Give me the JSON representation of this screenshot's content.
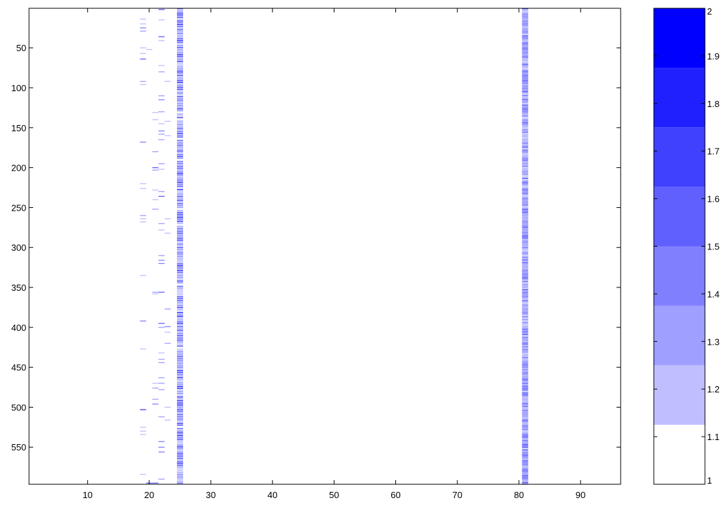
{
  "chart_data": [
    {
      "type": "heatmap",
      "title": "",
      "xlabel": "",
      "ylabel": "",
      "xlim": [
        0.5,
        96.5
      ],
      "ylim": [
        0.5,
        596.5
      ],
      "y_reversed": true,
      "xticks": [
        10,
        20,
        30,
        40,
        50,
        60,
        70,
        80,
        90
      ],
      "yticks": [
        50,
        100,
        150,
        200,
        250,
        300,
        350,
        400,
        450,
        500,
        550
      ],
      "background_value": 1,
      "colormap": [
        "#ffffff",
        "#bfbfff",
        "#9f9fff",
        "#8080ff",
        "#6060ff",
        "#4040ff",
        "#2020ff",
        "#0000ff"
      ],
      "columns": [
        {
          "x": 19,
          "cells": [
            {
              "y": 14,
              "value": 1.2
            },
            {
              "y": 20,
              "value": 1.2
            },
            {
              "y": 25,
              "value": 1.4
            },
            {
              "y": 29,
              "value": 1.3
            },
            {
              "y": 50,
              "value": 1.2
            },
            {
              "y": 57,
              "value": 1.2
            },
            {
              "y": 64,
              "value": 1.6
            },
            {
              "y": 92,
              "value": 1.3
            },
            {
              "y": 96,
              "value": 1.2
            },
            {
              "y": 168,
              "value": 1.4
            },
            {
              "y": 220,
              "value": 1.2
            },
            {
              "y": 226,
              "value": 1.2
            },
            {
              "y": 260,
              "value": 1.3
            },
            {
              "y": 264,
              "value": 1.2
            },
            {
              "y": 268,
              "value": 1.2
            },
            {
              "y": 335,
              "value": 1.2
            },
            {
              "y": 392,
              "value": 1.4
            },
            {
              "y": 427,
              "value": 1.2
            },
            {
              "y": 503,
              "value": 1.7
            },
            {
              "y": 525,
              "value": 1.2
            },
            {
              "y": 530,
              "value": 1.2
            },
            {
              "y": 534,
              "value": 1.2
            },
            {
              "y": 584,
              "value": 1.2
            }
          ]
        },
        {
          "x": 20,
          "cells": [
            {
              "y": 52,
              "value": 1.2
            },
            {
              "y": 595,
              "value": 1.5
            }
          ]
        },
        {
          "x": 21,
          "cells": [
            {
              "y": 131,
              "value": 1.2
            },
            {
              "y": 140,
              "value": 1.2
            },
            {
              "y": 180,
              "value": 1.3
            },
            {
              "y": 200,
              "value": 1.5
            },
            {
              "y": 203,
              "value": 1.3
            },
            {
              "y": 228,
              "value": 1.2
            },
            {
              "y": 240,
              "value": 1.2
            },
            {
              "y": 252,
              "value": 1.3
            },
            {
              "y": 356,
              "value": 1.3
            },
            {
              "y": 358,
              "value": 1.2
            },
            {
              "y": 470,
              "value": 1.2
            },
            {
              "y": 476,
              "value": 1.3
            },
            {
              "y": 490,
              "value": 1.3
            },
            {
              "y": 496,
              "value": 1.4
            },
            {
              "y": 595,
              "value": 1.6
            }
          ]
        },
        {
          "x": 22,
          "cells": [
            {
              "y": 2,
              "value": 1.5
            },
            {
              "y": 15,
              "value": 1.2
            },
            {
              "y": 36,
              "value": 1.6
            },
            {
              "y": 41,
              "value": 1.2
            },
            {
              "y": 72,
              "value": 1.2
            },
            {
              "y": 80,
              "value": 1.3
            },
            {
              "y": 110,
              "value": 1.3
            },
            {
              "y": 115,
              "value": 1.4
            },
            {
              "y": 130,
              "value": 1.3
            },
            {
              "y": 145,
              "value": 1.2
            },
            {
              "y": 154,
              "value": 1.4
            },
            {
              "y": 158,
              "value": 1.3
            },
            {
              "y": 165,
              "value": 1.3
            },
            {
              "y": 195,
              "value": 1.3
            },
            {
              "y": 202,
              "value": 1.2
            },
            {
              "y": 230,
              "value": 1.3
            },
            {
              "y": 236,
              "value": 1.6
            },
            {
              "y": 270,
              "value": 1.3
            },
            {
              "y": 278,
              "value": 1.2
            },
            {
              "y": 310,
              "value": 1.3
            },
            {
              "y": 316,
              "value": 1.4
            },
            {
              "y": 320,
              "value": 1.4
            },
            {
              "y": 356,
              "value": 1.6
            },
            {
              "y": 395,
              "value": 1.5
            },
            {
              "y": 400,
              "value": 1.3
            },
            {
              "y": 432,
              "value": 1.2
            },
            {
              "y": 440,
              "value": 1.3
            },
            {
              "y": 444,
              "value": 1.3
            },
            {
              "y": 463,
              "value": 1.3
            },
            {
              "y": 470,
              "value": 1.3
            },
            {
              "y": 478,
              "value": 1.3
            },
            {
              "y": 512,
              "value": 1.3
            },
            {
              "y": 543,
              "value": 1.4
            },
            {
              "y": 550,
              "value": 1.4
            },
            {
              "y": 556,
              "value": 1.4
            },
            {
              "y": 590,
              "value": 1.3
            }
          ]
        },
        {
          "x": 23,
          "cells": [
            {
              "y": 92,
              "value": 1.2
            },
            {
              "y": 142,
              "value": 1.2
            },
            {
              "y": 160,
              "value": 1.2
            },
            {
              "y": 264,
              "value": 1.2
            },
            {
              "y": 282,
              "value": 1.2
            },
            {
              "y": 377,
              "value": 1.3
            },
            {
              "y": 399,
              "value": 1.4
            },
            {
              "y": 406,
              "value": 1.2
            },
            {
              "y": 420,
              "value": 1.3
            },
            {
              "y": 500,
              "value": 1.2
            },
            {
              "y": 516,
              "value": 1.2
            }
          ]
        },
        {
          "x": 25,
          "band_yrange": [
            1,
            596
          ],
          "stripe_spacing": 2.2,
          "value_range": [
            1.1,
            1.9
          ],
          "mean_value": 1.4
        },
        {
          "x": 81,
          "band_yrange": [
            1,
            596
          ],
          "stripe_spacing": 1.7,
          "value_range": [
            1.2,
            1.7
          ],
          "mean_value": 1.4
        }
      ]
    },
    {
      "type": "colorbar",
      "ylim": [
        1,
        2
      ],
      "ticks": [
        1,
        1.1,
        1.2,
        1.3,
        1.4,
        1.5,
        1.6,
        1.7,
        1.8,
        1.9,
        2
      ],
      "tick_labels": [
        "1",
        "1.1",
        "1.2",
        "1.3",
        "1.4",
        "1.5",
        "1.6",
        "1.7",
        "1.8",
        "1.9",
        "2"
      ],
      "levels": [
        {
          "from": 1.0,
          "to": 1.125,
          "color": "#ffffff"
        },
        {
          "from": 1.125,
          "to": 1.25,
          "color": "#bfbfff"
        },
        {
          "from": 1.25,
          "to": 1.375,
          "color": "#9f9fff"
        },
        {
          "from": 1.375,
          "to": 1.5,
          "color": "#8080ff"
        },
        {
          "from": 1.5,
          "to": 1.625,
          "color": "#6060ff"
        },
        {
          "from": 1.625,
          "to": 1.75,
          "color": "#4040ff"
        },
        {
          "from": 1.75,
          "to": 1.875,
          "color": "#2020ff"
        },
        {
          "from": 1.875,
          "to": 2.0,
          "color": "#0000ff"
        }
      ]
    }
  ]
}
